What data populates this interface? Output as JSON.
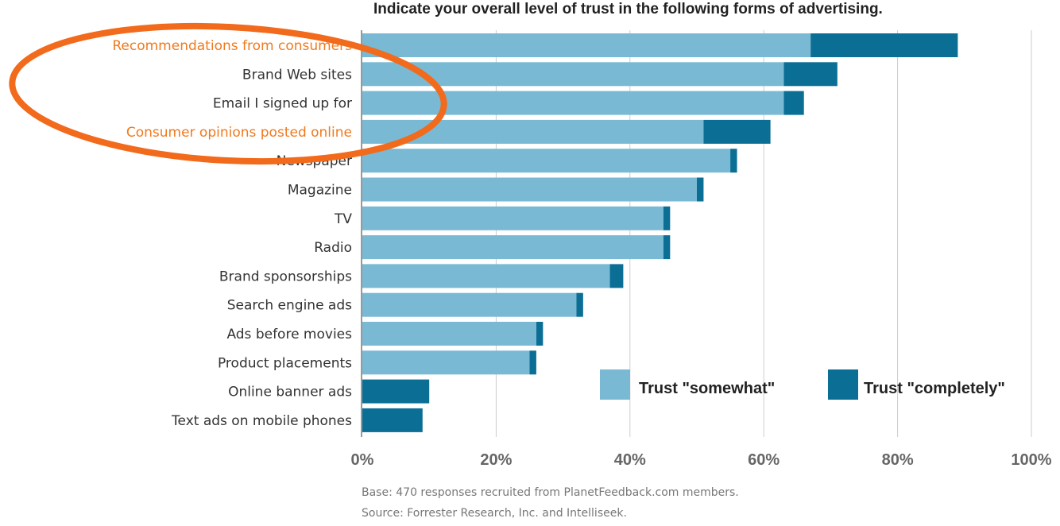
{
  "chart_data": {
    "type": "bar",
    "orientation": "horizontal",
    "stacked": true,
    "title": "Indicate your overall level of trust in the following forms of advertising.",
    "categories": [
      "Recommendations from consumers",
      "Brand Web sites",
      "Email I signed up for",
      "Consumer opinions posted online",
      "Newspaper",
      "Magazine",
      "TV",
      "Radio",
      "Brand sponsorships",
      "Search engine ads",
      "Ads before movies",
      "Product placements",
      "Online banner ads",
      "Text ads on mobile phones"
    ],
    "highlighted_categories": [
      "Recommendations from consumers",
      "Consumer opinions posted online"
    ],
    "series": [
      {
        "name": "Trust \"somewhat\"",
        "color": "#79b9d3",
        "values": [
          67,
          63,
          63,
          51,
          55,
          50,
          45,
          45,
          37,
          32,
          26,
          25,
          0,
          0
        ]
      },
      {
        "name": "Trust \"completely\"",
        "color": "#0b6e95",
        "values": [
          22,
          8,
          3,
          10,
          1,
          1,
          1,
          1,
          2,
          1,
          1,
          1,
          10,
          9
        ]
      }
    ],
    "xlim": [
      0,
      100
    ],
    "xticks": [
      "0%",
      "20%",
      "40%",
      "60%",
      "80%",
      "100%"
    ],
    "grid": true,
    "legend_position": "bottom-right"
  },
  "notes": {
    "base": "Base: 470 responses recruited from PlanetFeedback.com members.",
    "source": "Source: Forrester Research, Inc. and Intelliseek."
  },
  "annotation": {
    "type": "ellipse",
    "color": "#f26a1b"
  },
  "colors": {
    "highlight_label": "#f07a1e",
    "axis": "#999999",
    "grid": "#cccccc"
  }
}
